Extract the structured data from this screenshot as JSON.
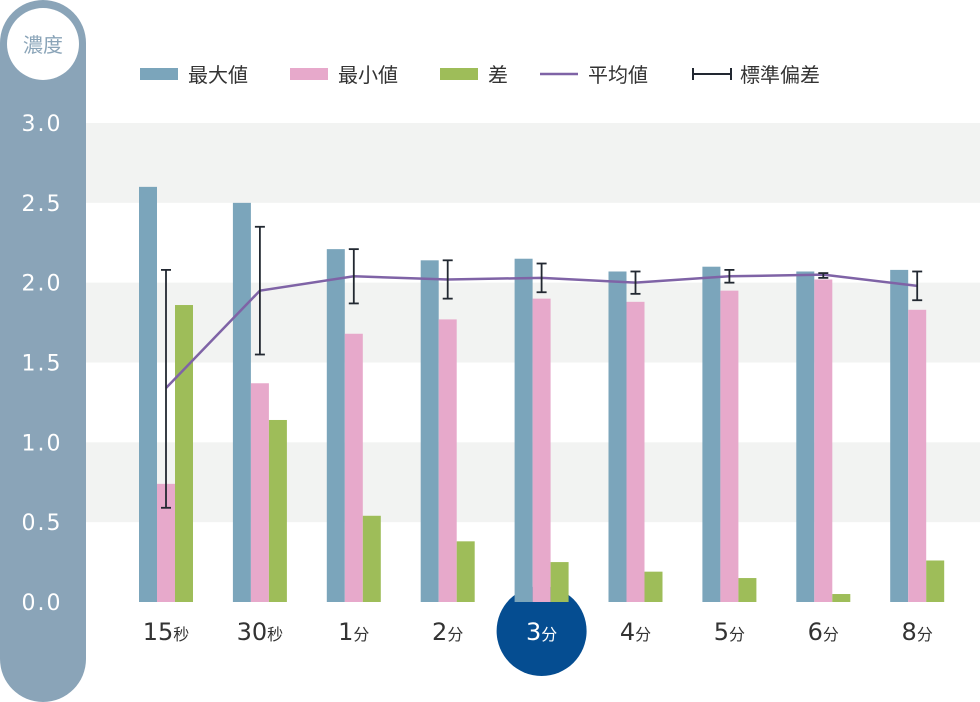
{
  "y_axis_title": "濃度",
  "legend": {
    "max": "最大値",
    "min": "最小値",
    "diff": "差",
    "mean": "平均値",
    "sd": "標準偏差"
  },
  "highlighted_category": "3分",
  "colors": {
    "max": "#7ba5bb",
    "min": "#e7a9cb",
    "diff": "#9ebd59",
    "mean": "#7f63a6",
    "error_bar": "#222831",
    "axis_panel": "#8aa4b8",
    "band": "#f2f3f2",
    "highlight": "#054d91"
  },
  "chart_data": {
    "type": "bar",
    "categories": [
      {
        "num": "15",
        "unit": "秒"
      },
      {
        "num": "30",
        "unit": "秒"
      },
      {
        "num": "1",
        "unit": "分"
      },
      {
        "num": "2",
        "unit": "分"
      },
      {
        "num": "3",
        "unit": "分"
      },
      {
        "num": "4",
        "unit": "分"
      },
      {
        "num": "5",
        "unit": "分"
      },
      {
        "num": "6",
        "unit": "分"
      },
      {
        "num": "8",
        "unit": "分"
      }
    ],
    "series": [
      {
        "name": "最大値",
        "type": "bar",
        "values": [
          2.6,
          2.5,
          2.21,
          2.14,
          2.15,
          2.07,
          2.1,
          2.07,
          2.08
        ]
      },
      {
        "name": "最小値",
        "type": "bar",
        "values": [
          0.74,
          1.37,
          1.68,
          1.77,
          1.9,
          1.88,
          1.95,
          2.02,
          1.83
        ]
      },
      {
        "name": "差",
        "type": "bar",
        "values": [
          1.86,
          1.14,
          0.54,
          0.38,
          0.25,
          0.19,
          0.15,
          0.05,
          0.26
        ]
      }
    ],
    "mean": {
      "name": "平均値",
      "type": "line",
      "values": [
        1.34,
        1.95,
        2.04,
        2.02,
        2.03,
        2.0,
        2.04,
        2.05,
        1.98
      ]
    },
    "error_bars": {
      "name": "標準偏差",
      "upper": [
        2.08,
        2.35,
        2.21,
        2.14,
        2.12,
        2.07,
        2.08,
        2.06,
        2.07
      ],
      "lower": [
        0.59,
        1.55,
        1.87,
        1.9,
        1.94,
        1.93,
        2.0,
        2.03,
        1.89
      ]
    },
    "yticks": [
      "0.0",
      "0.5",
      "1.0",
      "1.5",
      "2.0",
      "2.5",
      "3.0"
    ],
    "ylim": [
      0,
      3.0
    ],
    "grid": "alternating horizontal bands",
    "legend_position": "top"
  }
}
